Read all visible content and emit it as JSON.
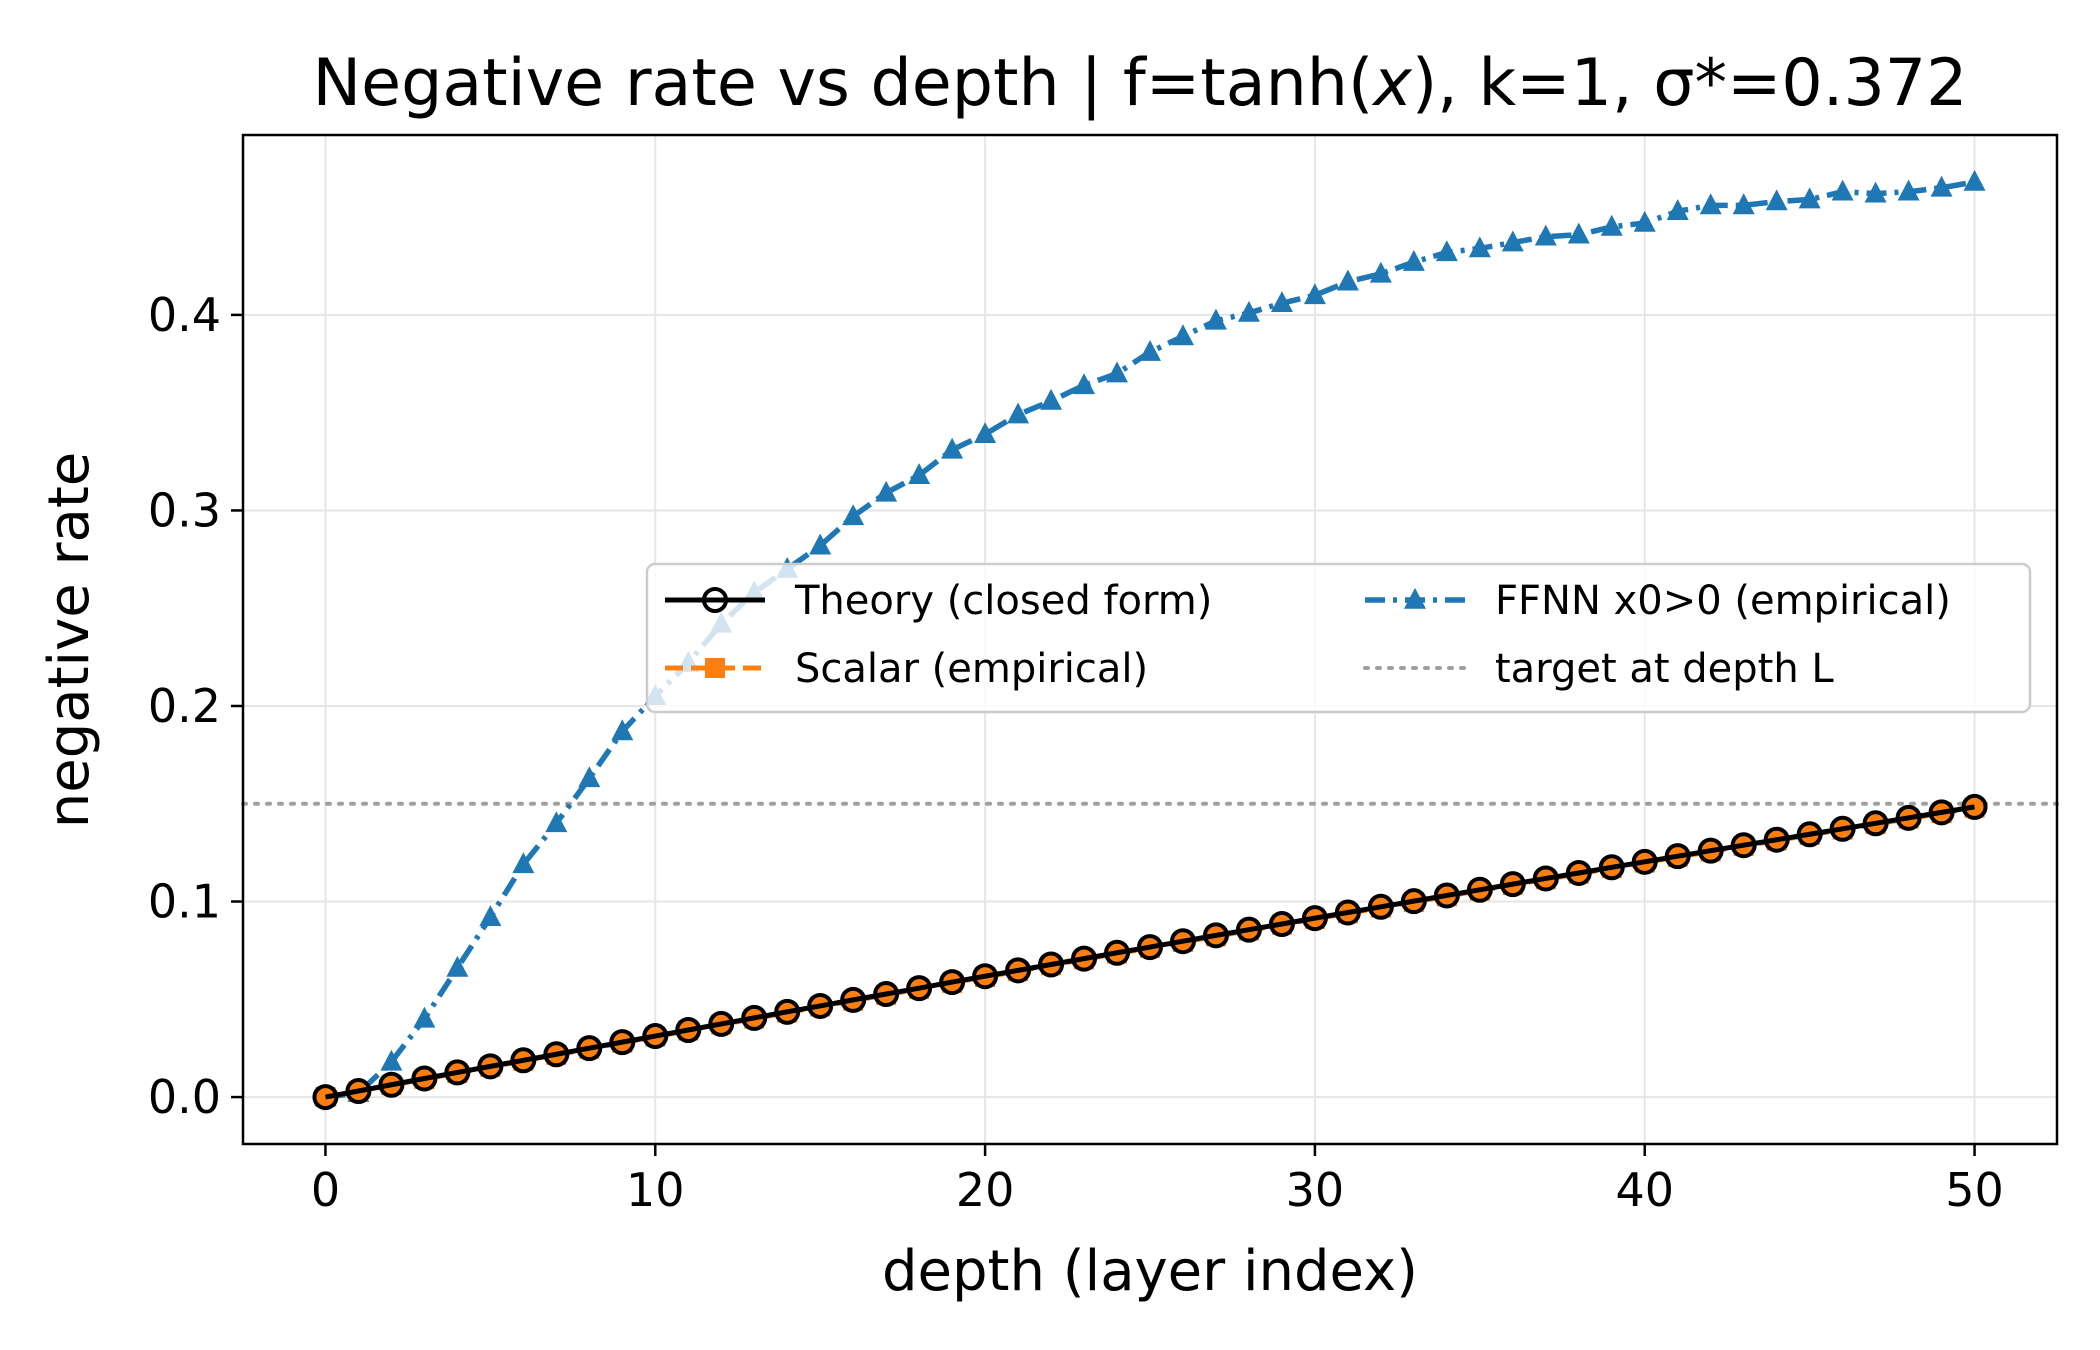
{
  "chart_data": {
    "type": "line",
    "title": "Negative rate vs depth | f=tanh(x), k=1, σ*=0.372",
    "title_parts": {
      "prefix": "Negative rate vs depth | f=tanh(",
      "variable": "x",
      "suffix": "), k=1, σ*=0.372"
    },
    "xlabel": "depth (layer index)",
    "ylabel": "negative rate",
    "xlim": [
      -2.5,
      52.5
    ],
    "ylim": [
      -0.024,
      0.492
    ],
    "xticks": [
      0,
      10,
      20,
      30,
      40,
      50
    ],
    "xtick_labels": [
      "0",
      "10",
      "20",
      "30",
      "40",
      "50"
    ],
    "yticks": [
      0.0,
      0.1,
      0.2,
      0.3,
      0.4
    ],
    "ytick_labels": [
      "0.0",
      "0.1",
      "0.2",
      "0.3",
      "0.4"
    ],
    "grid": true,
    "legend_position": "center-right",
    "target_line": {
      "name": "target at depth L",
      "y": 0.15,
      "color": "#a0a0a0"
    },
    "x": [
      0,
      1,
      2,
      3,
      4,
      5,
      6,
      7,
      8,
      9,
      10,
      11,
      12,
      13,
      14,
      15,
      16,
      17,
      18,
      19,
      20,
      21,
      22,
      23,
      24,
      25,
      26,
      27,
      28,
      29,
      30,
      31,
      32,
      33,
      34,
      35,
      36,
      37,
      38,
      39,
      40,
      41,
      42,
      43,
      44,
      45,
      46,
      47,
      48,
      49,
      50
    ],
    "series": [
      {
        "name": "Theory (closed form)",
        "color": "#000000",
        "marker": "circle",
        "values": [
          0.0,
          0.0031,
          0.0063,
          0.0095,
          0.0126,
          0.0157,
          0.0188,
          0.0219,
          0.025,
          0.0281,
          0.0312,
          0.0343,
          0.0374,
          0.0405,
          0.0436,
          0.0466,
          0.0497,
          0.0527,
          0.0557,
          0.0588,
          0.0618,
          0.0648,
          0.0678,
          0.0708,
          0.0738,
          0.0767,
          0.0797,
          0.0827,
          0.0856,
          0.0885,
          0.0915,
          0.0944,
          0.0973,
          0.1002,
          0.1031,
          0.106,
          0.1089,
          0.1118,
          0.1146,
          0.1175,
          0.1203,
          0.1232,
          0.126,
          0.1288,
          0.1316,
          0.1344,
          0.1372,
          0.14,
          0.1428,
          0.1456,
          0.1484
        ]
      },
      {
        "name": "Scalar (empirical)",
        "color": "#ff7f0e",
        "marker": "square",
        "values": [
          0.0,
          0.0029,
          0.0061,
          0.0092,
          0.0123,
          0.0154,
          0.0185,
          0.0216,
          0.0247,
          0.0278,
          0.0309,
          0.034,
          0.0371,
          0.0401,
          0.0432,
          0.0463,
          0.0493,
          0.0523,
          0.0553,
          0.0584,
          0.0614,
          0.0644,
          0.0674,
          0.0704,
          0.0734,
          0.0763,
          0.0793,
          0.0822,
          0.0852,
          0.0881,
          0.0911,
          0.094,
          0.0969,
          0.0998,
          0.1027,
          0.1056,
          0.1085,
          0.1114,
          0.1142,
          0.1171,
          0.1199,
          0.1228,
          0.1256,
          0.1284,
          0.1312,
          0.134,
          0.1368,
          0.1396,
          0.1424,
          0.1452,
          0.148
        ]
      },
      {
        "name": "FFNN x0>0 (empirical)",
        "color": "#1f77b4",
        "marker": "triangle",
        "values": [
          0.0,
          0.002,
          0.018,
          0.04,
          0.066,
          0.092,
          0.119,
          0.14,
          0.163,
          0.187,
          0.205,
          0.222,
          0.242,
          0.258,
          0.27,
          0.282,
          0.297,
          0.309,
          0.318,
          0.331,
          0.339,
          0.349,
          0.356,
          0.364,
          0.37,
          0.381,
          0.389,
          0.397,
          0.401,
          0.406,
          0.41,
          0.417,
          0.421,
          0.427,
          0.432,
          0.434,
          0.437,
          0.44,
          0.441,
          0.445,
          0.447,
          0.453,
          0.456,
          0.456,
          0.458,
          0.459,
          0.463,
          0.462,
          0.463,
          0.465,
          0.468
        ]
      }
    ],
    "legend": {
      "entries": [
        "Theory (closed form)",
        "Scalar (empirical)",
        "FFNN x0>0 (empirical)",
        "target at depth L"
      ]
    }
  }
}
